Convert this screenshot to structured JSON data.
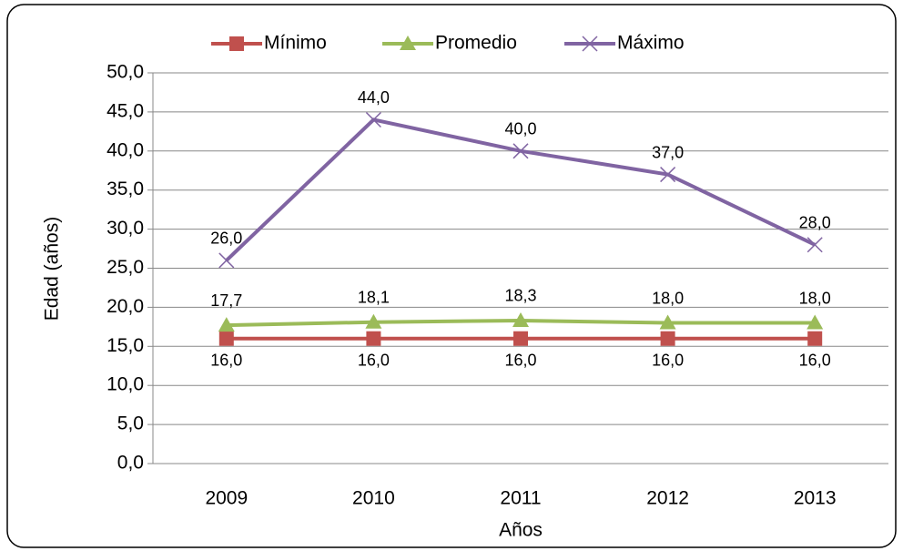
{
  "chart_data": {
    "type": "line",
    "categories": [
      "2009",
      "2010",
      "2011",
      "2012",
      "2013"
    ],
    "series": [
      {
        "name": "Mínimo",
        "color": "#c0504d",
        "marker": "square",
        "values": [
          16,
          16,
          16,
          16,
          16
        ],
        "value_labels": [
          "16,0",
          "16,0",
          "16,0",
          "16,0",
          "16,0"
        ]
      },
      {
        "name": "Promedio",
        "color": "#9bbb59",
        "marker": "triangle",
        "values": [
          17.7,
          18.1,
          18.3,
          18.0,
          18.0
        ],
        "value_labels": [
          "17,7",
          "18,1",
          "18,3",
          "18,0",
          "18,0"
        ]
      },
      {
        "name": "Máximo",
        "color": "#8064a2",
        "marker": "x",
        "values": [
          26,
          44,
          40,
          37,
          28
        ],
        "value_labels": [
          "26,0",
          "44,0",
          "40,0",
          "37,0",
          "28,0"
        ]
      }
    ],
    "ylabel": "Edad (años)",
    "xlabel": "Años",
    "ylim": [
      0,
      50
    ],
    "yticks": [
      {
        "value": 0,
        "label": "0,0"
      },
      {
        "value": 5,
        "label": "5,0"
      },
      {
        "value": 10,
        "label": "10,0"
      },
      {
        "value": 15,
        "label": "15,0"
      },
      {
        "value": 20,
        "label": "20,0"
      },
      {
        "value": 25,
        "label": "25,0"
      },
      {
        "value": 30,
        "label": "30,0"
      },
      {
        "value": 35,
        "label": "35,0"
      },
      {
        "value": 40,
        "label": "40,0"
      },
      {
        "value": 45,
        "label": "45,0"
      },
      {
        "value": 50,
        "label": "50,0"
      }
    ],
    "grid": true,
    "legend": "top"
  }
}
